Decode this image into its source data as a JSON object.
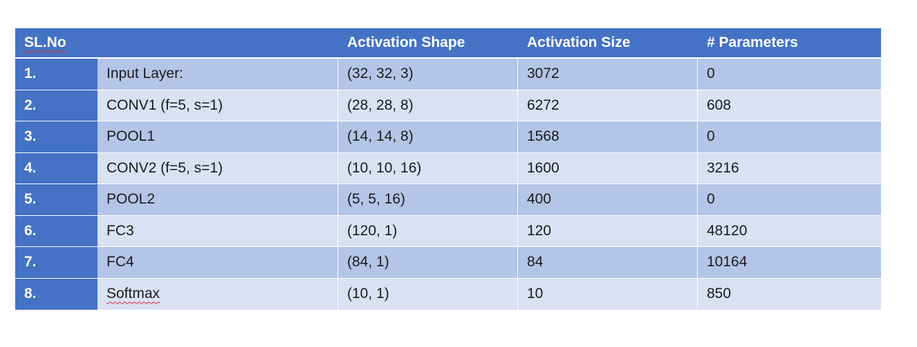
{
  "table": {
    "headers": [
      "SL.No",
      "",
      "Activation Shape",
      "Activation Size",
      "# Parameters"
    ],
    "rows": [
      [
        "1.",
        "Input Layer:",
        "(32, 32, 3)",
        "3072",
        "0"
      ],
      [
        "2.",
        "CONV1 (f=5, s=1)",
        "(28, 28, 8)",
        "6272",
        "608"
      ],
      [
        "3.",
        "POOL1",
        "(14, 14, 8)",
        "1568",
        "0"
      ],
      [
        "4.",
        "CONV2 (f=5, s=1)",
        "(10, 10, 16)",
        "1600",
        "3216"
      ],
      [
        "5.",
        "POOL2",
        "(5, 5, 16)",
        "400",
        "0"
      ],
      [
        "6.",
        "FC3",
        "(120, 1)",
        "120",
        "48120"
      ],
      [
        "7.",
        "FC4",
        "(84, 1)",
        "84",
        "10164"
      ],
      [
        "8.",
        "Softmax",
        "(10, 1)",
        "10",
        "850"
      ]
    ]
  },
  "colors": {
    "header_blue": "#4472c4",
    "row_dark": "#b4c6e7",
    "row_light": "#d9e1f2",
    "spellcheck_underline": "#d92a2a"
  }
}
